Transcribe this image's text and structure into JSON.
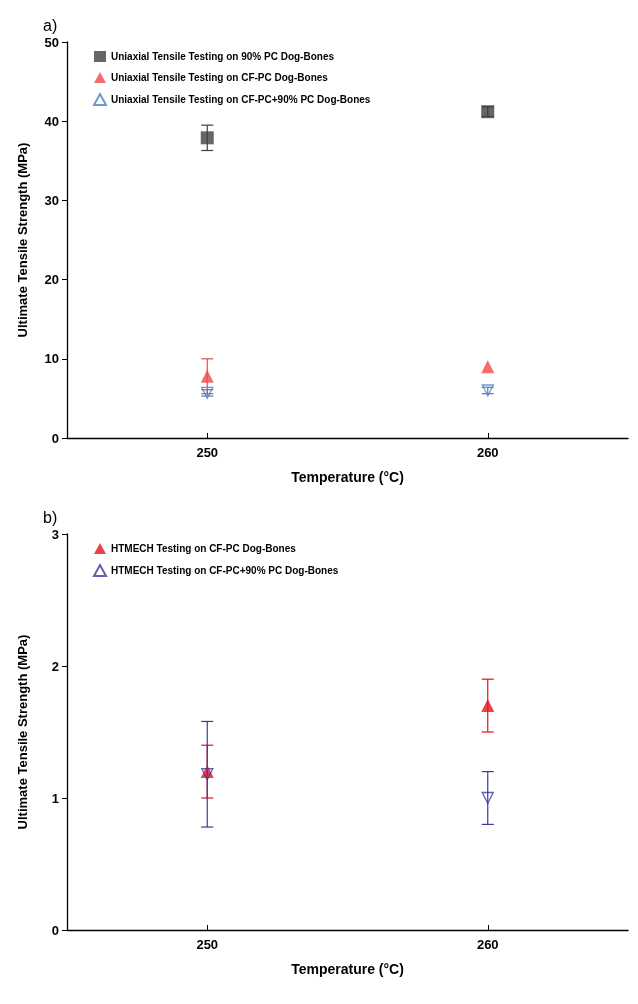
{
  "chart_data": [
    {
      "type": "scatter",
      "title": "a)",
      "xlabel": "Temperature (°C)",
      "ylabel": "Ultimate Tensile Strength (MPa)",
      "categories": [
        "250",
        "260"
      ],
      "ylim": [
        0,
        50
      ],
      "yticks": [
        0,
        10,
        20,
        30,
        40,
        50
      ],
      "grid": false,
      "legend": "top left",
      "series": [
        {
          "name": "Uniaxial Tensile Testing on 90% PC Dog-Bones",
          "color": "#404040",
          "marker": "square",
          "values": [
            37.9,
            41.2
          ],
          "errors": [
            1.6,
            0.6
          ]
        },
        {
          "name": "Uniaxial Tensile Testing on CF-PC Dog-Bones",
          "color": "#f04848",
          "marker": "triangle",
          "values": [
            7.8,
            9.0
          ],
          "errors": [
            2.2,
            null
          ]
        },
        {
          "name": "Uniaxial Tensile Testing on CF-PC+90% PC Dog-Bones",
          "color": "#4a80c0",
          "marker": "triangle-down",
          "values": [
            5.7,
            6.0
          ],
          "errors": [
            0.4,
            0.4
          ]
        }
      ]
    },
    {
      "type": "scatter",
      "title": "b)",
      "xlabel": "Temperature (°C)",
      "ylabel": "Ultimate Tensile Strength (MPa)",
      "categories": [
        "250",
        "260"
      ],
      "ylim": [
        0,
        3
      ],
      "yticks": [
        0,
        1,
        2,
        3
      ],
      "grid": false,
      "legend": "top left",
      "series": [
        {
          "name": "HTMECH Testing on CF-PC Dog-Bones",
          "color": "#e8101a",
          "marker": "triangle",
          "values": [
            1.2,
            1.7
          ],
          "errors": [
            0.2,
            0.2
          ]
        },
        {
          "name": "HTMECH Testing on CF-PC+90% PC Dog-Bones",
          "color": "#3a3a9a",
          "marker": "triangle-down",
          "values": [
            1.18,
            1.0
          ],
          "errors": [
            0.4,
            0.2
          ]
        }
      ]
    }
  ]
}
